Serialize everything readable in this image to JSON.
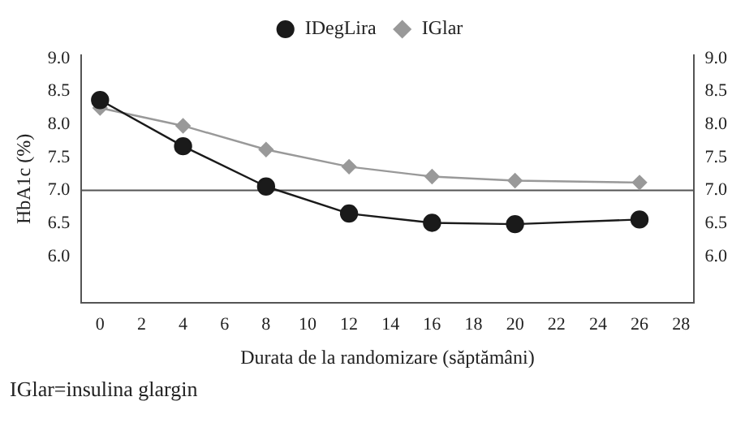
{
  "chart_data": {
    "type": "line",
    "xlabel": "Durata de la randomizare (săptămâni)",
    "ylabel": "HbA1c (%)",
    "xlim": [
      -0.9,
      28.6
    ],
    "xticks": [
      0,
      2,
      4,
      6,
      8,
      10,
      12,
      14,
      16,
      18,
      20,
      22,
      24,
      26,
      28
    ],
    "ylim": [
      5.3,
      9.05
    ],
    "yticks": [
      {
        "value": 6,
        "label": "6.0"
      },
      6.5,
      {
        "value": 7,
        "label": "7.0"
      },
      7.5,
      {
        "value": 8,
        "label": "8.0"
      },
      8.5,
      {
        "value": 9,
        "label": "9.0"
      }
    ],
    "y2lim": [
      5.3,
      9.05
    ],
    "y2ticks": [
      {
        "value": 6,
        "label": "6.0"
      },
      6.5,
      {
        "value": 7,
        "label": "7.0"
      },
      7.5,
      {
        "value": 8,
        "label": "8.0"
      },
      8.5,
      {
        "value": 9,
        "label": "9.0"
      }
    ],
    "x": [
      0,
      4,
      8,
      12,
      16,
      20,
      26
    ],
    "series": [
      {
        "name": "IDegLira",
        "color": "#1a1a1a",
        "marker": "circle",
        "values": [
          8.37,
          7.67,
          7.06,
          6.65,
          6.51,
          6.49,
          6.56
        ]
      },
      {
        "name": "IGlar",
        "color": "#999999",
        "marker": "diamond",
        "values": [
          8.25,
          7.98,
          7.62,
          7.36,
          7.21,
          7.15,
          7.12
        ]
      }
    ],
    "ref_lines": [
      {
        "axis": "y",
        "value": 7.0,
        "color": "#555555"
      }
    ],
    "legend": "top",
    "grid": false,
    "line_style": "solid",
    "annotations": [
      "IGlar=insulina glargin"
    ]
  }
}
